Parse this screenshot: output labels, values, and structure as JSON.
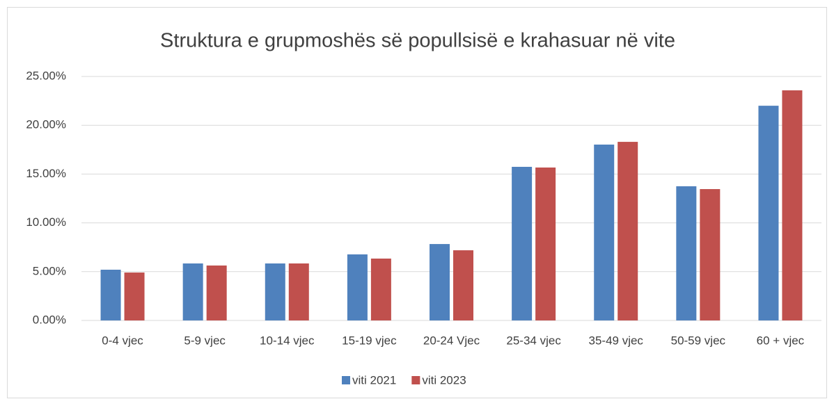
{
  "chart_data": {
    "type": "bar",
    "title": "Struktura e grupmoshës së popullsisë e krahasuar në vite",
    "categories": [
      "0-4 vjec",
      "5-9 vjec",
      "10-14 vjec",
      "15-19 vjec",
      "20-24 Vjec",
      "25-34 vjec",
      "35-49 vjec",
      "50-59 vjec",
      "60 + vjec"
    ],
    "series": [
      {
        "name": "viti 2021",
        "color": "#4f81bd",
        "values": [
          5.2,
          5.84,
          5.84,
          6.77,
          7.83,
          15.74,
          18.02,
          13.75,
          22.0
        ]
      },
      {
        "name": "viti 2023",
        "color": "#c0504d",
        "values": [
          4.91,
          5.63,
          5.84,
          6.34,
          7.19,
          15.67,
          18.3,
          13.46,
          23.58
        ]
      }
    ],
    "ylim": [
      0,
      25
    ],
    "yticks": [
      {
        "value": 0,
        "label": "0.00%"
      },
      {
        "value": 5,
        "label": "5.00%"
      },
      {
        "value": 10,
        "label": "10.00%"
      },
      {
        "value": 15,
        "label": "15.00%"
      },
      {
        "value": 20,
        "label": "20.00%"
      },
      {
        "value": 25,
        "label": "25.00%"
      }
    ],
    "grid": true,
    "legend": "bottom"
  }
}
